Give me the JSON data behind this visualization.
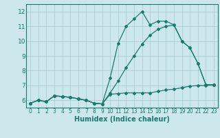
{
  "xlabel": "Humidex (Indice chaleur)",
  "bg_color": "#cce8ec",
  "line_color": "#1a7a6e",
  "grid_color": "#aacdd4",
  "xlim": [
    -0.5,
    23.5
  ],
  "ylim": [
    5.5,
    12.5
  ],
  "xticks": [
    0,
    1,
    2,
    3,
    4,
    5,
    6,
    7,
    8,
    9,
    10,
    11,
    12,
    13,
    14,
    15,
    16,
    17,
    18,
    19,
    20,
    21,
    22,
    23
  ],
  "yticks": [
    6,
    7,
    8,
    9,
    10,
    11,
    12
  ],
  "line1_x": [
    0,
    1,
    2,
    3,
    4,
    5,
    6,
    7,
    8,
    9,
    10,
    11,
    12,
    13,
    14,
    15,
    16,
    17,
    18,
    19,
    20,
    21,
    22,
    23
  ],
  "line1_y": [
    5.8,
    6.0,
    5.9,
    6.3,
    6.25,
    6.2,
    6.1,
    6.0,
    5.8,
    5.75,
    6.4,
    6.45,
    6.5,
    6.5,
    6.5,
    6.5,
    6.6,
    6.7,
    6.75,
    6.85,
    6.95,
    7.0,
    7.0,
    7.05
  ],
  "line2_x": [
    0,
    1,
    2,
    3,
    4,
    5,
    6,
    7,
    8,
    9,
    10,
    11,
    12,
    13,
    14,
    15,
    16,
    17,
    18,
    19,
    20,
    21,
    22,
    23
  ],
  "line2_y": [
    5.8,
    6.0,
    5.9,
    6.3,
    6.25,
    6.2,
    6.1,
    6.0,
    5.8,
    5.75,
    6.5,
    7.3,
    8.2,
    9.0,
    9.8,
    10.4,
    10.8,
    11.0,
    11.1,
    10.0,
    9.55,
    8.5,
    7.05,
    7.05
  ],
  "line3_x": [
    0,
    1,
    2,
    3,
    4,
    5,
    6,
    7,
    8,
    9,
    10,
    11,
    12,
    13,
    14,
    15,
    16,
    17,
    18,
    19,
    20,
    21,
    22,
    23
  ],
  "line3_y": [
    5.8,
    6.0,
    5.9,
    6.3,
    6.25,
    6.2,
    6.1,
    6.0,
    5.8,
    5.75,
    7.5,
    9.85,
    11.0,
    11.5,
    12.0,
    11.1,
    11.35,
    11.35,
    11.1,
    10.0,
    9.55,
    8.5,
    7.05,
    7.05
  ]
}
